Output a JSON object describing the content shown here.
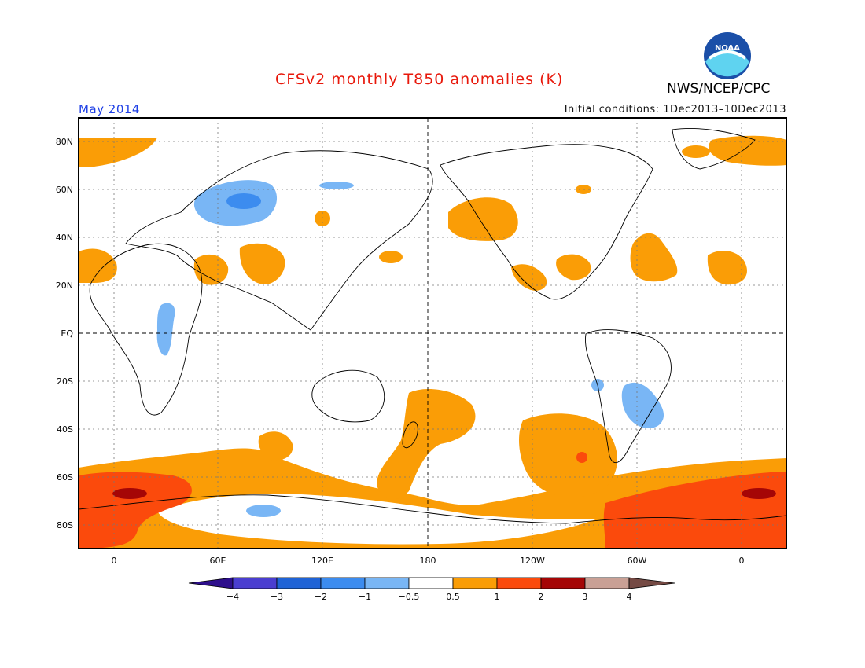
{
  "header": {
    "title": "CFSv2 monthly T850 anomalies (K)",
    "agency": "NWS/NCEP/CPC",
    "period": "May 2014",
    "initial_conditions": "Initial conditions: 1Dec2013–10Dec2013",
    "logo_text": "NOAA",
    "logo_icon": "noaa-logo-icon"
  },
  "colors": {
    "title": "#e8180b",
    "period": "#1f40e6",
    "ocean_bg": "#ffffff",
    "grid": "#777777",
    "coast": "#000000",
    "anom_lt_m4": "#2e0f8c",
    "anom_m4_m3": "#4a3ed0",
    "anom_m3_m2": "#1f63d6",
    "anom_m2_m1": "#3c8cef",
    "anom_m1_m05": "#79b6f5",
    "anom_neutral": "#ffffff",
    "anom_05_1": "#fa9d06",
    "anom_1_2": "#fb4a0c",
    "anom_2_3": "#a50606",
    "anom_3_4": "#c9a095",
    "anom_gt_4": "#754a44"
  },
  "lat_labels": [
    "80N",
    "60N",
    "40N",
    "20N",
    "EQ",
    "20S",
    "40S",
    "60S",
    "80S"
  ],
  "lon_labels": [
    "0",
    "60E",
    "120E",
    "180",
    "120W",
    "60W",
    "0"
  ],
  "colorbar": {
    "ticks": [
      "−4",
      "−3",
      "−2",
      "−1",
      "−0.5",
      "0.5",
      "1",
      "2",
      "3",
      "4"
    ]
  }
}
